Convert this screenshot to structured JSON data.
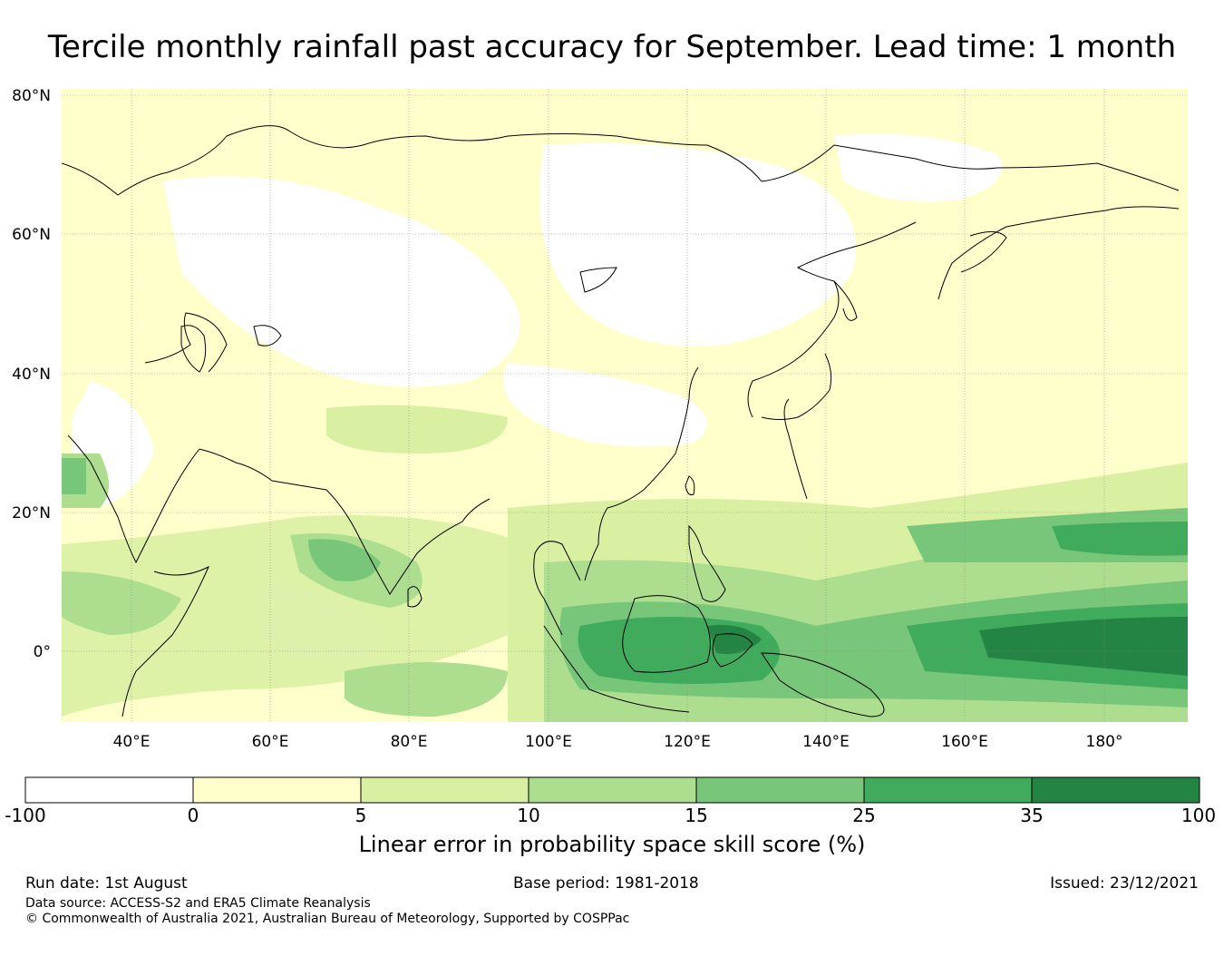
{
  "title": "Tercile monthly rainfall past accuracy for September. Lead time: 1 month",
  "map": {
    "lat_labels": [
      "80°N",
      "60°N",
      "40°N",
      "20°N",
      "0°"
    ],
    "lon_labels": [
      "40°E",
      "60°E",
      "80°E",
      "100°E",
      "120°E",
      "140°E",
      "160°E",
      "180°"
    ],
    "lon_range": [
      30,
      192
    ],
    "lat_range": [
      -10,
      80
    ]
  },
  "colorbar": {
    "boundaries": [
      "-100",
      "0",
      "5",
      "10",
      "15",
      "25",
      "35",
      "100"
    ],
    "colors": [
      "#ffffff",
      "#ffffcc",
      "#d9f0a3",
      "#addd8e",
      "#78c679",
      "#41ab5d",
      "#238443"
    ],
    "label": "Linear error in probability space skill score (%)"
  },
  "footer": {
    "run_date": "Run date: 1st August",
    "base_period": "Base period: 1981-2018",
    "issued": "Issued: 23/12/2021",
    "data_source": "Data source: ACCESS-S2 and ERA5 Climate Reanalysis",
    "copyright": "© Commonwealth of Australia 2021, Australian Bureau of Meteorology, Supported by COSPPac"
  }
}
